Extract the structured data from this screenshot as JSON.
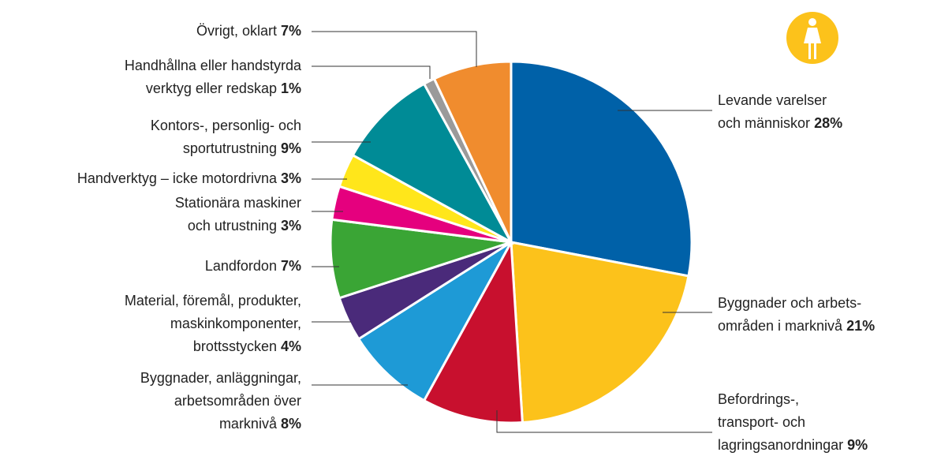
{
  "chart_data": {
    "type": "pie",
    "categories": [
      "Levande varelser\noch människor",
      "Byggnader och arbets-\nområden i marknivå",
      "Befordrings-,\ntransport- och\nlagringsanordningar",
      "Byggnader, anläggningar,\narbetsområden över\nmarknivå",
      "Material, föremål, produkter,\nmaskinkomponenter,\nbrottsstycken",
      "Landfordon",
      "Stationära maskiner\noch utrustning",
      "Handverktyg – icke motordrivna",
      "Kontors-, personlig- och\nsportutrustning",
      "Handhållna eller handstyrda\nverktyg eller redskap",
      "Övrigt, oklart"
    ],
    "values": [
      28,
      21,
      9,
      8,
      4,
      7,
      3,
      3,
      9,
      1,
      7
    ],
    "value_labels": [
      "28%",
      "21%",
      "9%",
      "8%",
      "4%",
      "7%",
      "3%",
      "3%",
      "9%",
      "1%",
      "7%"
    ],
    "colors": [
      "#0061a8",
      "#fcc21b",
      "#c8102e",
      "#1e9ad6",
      "#4a2a7a",
      "#3aa535",
      "#e5007e",
      "#ffe61b",
      "#008b96",
      "#9a9a9a",
      "#f08c2e"
    ]
  }
}
